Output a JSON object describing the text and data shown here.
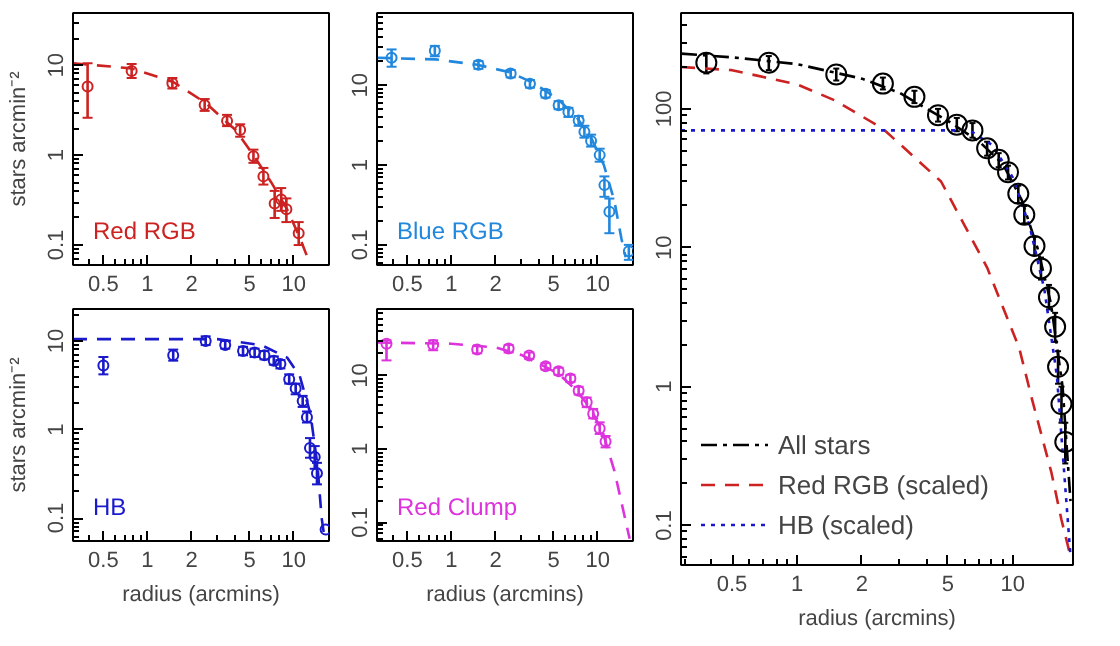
{
  "chart_data": [
    {
      "type": "scatter",
      "log": "xy",
      "ylabel": "stars arcmin⁻²",
      "xlim": [
        0.31,
        17.4
      ],
      "ylim": [
        0.06,
        38
      ],
      "xticks": [
        0.5,
        1,
        2,
        5,
        10
      ],
      "yticks": [
        0.1,
        1,
        10
      ],
      "series": [
        {
          "name": "Red RGB",
          "color": "#cc2222",
          "type": "scatter",
          "marker": "circle",
          "x": [
            0.39,
            0.78,
            1.48,
            2.46,
            3.5,
            4.3,
            5.3,
            6.2,
            7.4,
            8.2,
            8.9,
            10.8
          ],
          "values": [
            5.8,
            8.6,
            6.3,
            3.6,
            2.4,
            1.9,
            0.97,
            0.58,
            0.29,
            0.32,
            0.25,
            0.135
          ],
          "errors": [
            [
              2.6,
              10.5
            ],
            [
              7.2,
              10.3
            ],
            [
              5.5,
              7.2
            ],
            [
              3.1,
              4.2
            ],
            [
              2.1,
              2.8
            ],
            [
              1.6,
              2.2
            ],
            [
              0.82,
              1.15
            ],
            [
              0.47,
              0.72
            ],
            [
              0.2,
              0.4
            ],
            [
              0.24,
              0.43
            ],
            [
              0.18,
              0.33
            ],
            [
              0.1,
              0.18
            ]
          ]
        },
        {
          "color": "#cc2222",
          "type": "line",
          "line_style": "dashed",
          "x": [
            0.31,
            0.78,
            1.5,
            2.5,
            4,
            5.3,
            7,
            9,
            11,
            13
          ],
          "values": [
            10.5,
            9.2,
            6.5,
            3.8,
            1.9,
            1.0,
            0.5,
            0.25,
            0.12,
            0.06
          ]
        }
      ]
    },
    {
      "type": "scatter",
      "log": "xy",
      "xlim": [
        0.31,
        17.4
      ],
      "ylim": [
        0.056,
        80
      ],
      "xticks": [
        0.5,
        1,
        2,
        5,
        10
      ],
      "yticks": [
        0.1,
        1,
        10
      ],
      "series": [
        {
          "name": "Blue RGB",
          "color": "#2288dd",
          "type": "scatter",
          "marker": "circle",
          "x": [
            0.39,
            0.77,
            1.53,
            2.54,
            3.44,
            4.4,
            5.4,
            6.3,
            7.4,
            8.1,
            9.0,
            10.3,
            11.1,
            12.0,
            16.3
          ],
          "values": [
            22,
            27,
            18,
            14,
            10.4,
            7.8,
            5.6,
            4.6,
            3.6,
            2.6,
            2.0,
            1.33,
            0.56,
            0.26,
            0.083
          ],
          "errors": [
            [
              17,
              28
            ],
            [
              23,
              31
            ],
            [
              16,
              20
            ],
            [
              12.5,
              15.5
            ],
            [
              9.3,
              11.6
            ],
            [
              7,
              8.7
            ],
            [
              5,
              6.3
            ],
            [
              4,
              5.2
            ],
            [
              3.1,
              4.1
            ],
            [
              2.2,
              3.1
            ],
            [
              1.7,
              2.4
            ],
            [
              1.1,
              1.6
            ],
            [
              0.4,
              0.72
            ],
            [
              0.14,
              0.38
            ],
            [
              0.065,
              0.1
            ]
          ]
        },
        {
          "color": "#2288dd",
          "type": "line",
          "line_style": "dashed",
          "x": [
            0.31,
            0.78,
            1.5,
            2.5,
            3.5,
            4.4,
            5.4,
            7,
            9,
            11,
            13,
            14.5,
            15.5
          ],
          "values": [
            22,
            21,
            18,
            14.5,
            11,
            8.5,
            6.5,
            4.2,
            2.2,
            1.0,
            0.35,
            0.12,
            0.07
          ]
        }
      ]
    },
    {
      "type": "scatter",
      "log": "xy",
      "xlabel": "radius (arcmins)",
      "ylabel": "stars arcmin⁻²",
      "xlim": [
        0.31,
        17.4
      ],
      "ylim": [
        0.055,
        23
      ],
      "xticks": [
        0.5,
        1,
        2,
        5,
        10
      ],
      "yticks": [
        0.1,
        1,
        10
      ],
      "series": [
        {
          "name": "HB",
          "color": "#1a1acc",
          "type": "scatter",
          "marker": "circle",
          "x": [
            0.5,
            1.5,
            2.5,
            3.4,
            4.5,
            5.4,
            6.3,
            7.3,
            8.1,
            9.3,
            10.3,
            11.5,
            12.3,
            12.9,
            13.9,
            14.4,
            16.5
          ],
          "values": [
            5.3,
            6.9,
            10,
            9,
            7.7,
            7.4,
            6.9,
            6.0,
            5.5,
            3.7,
            2.9,
            2.1,
            1.38,
            0.62,
            0.49,
            0.32,
            0.074
          ],
          "errors": [
            [
              4.2,
              6.6
            ],
            [
              6,
              8
            ],
            [
              9,
              11.3
            ],
            [
              8.2,
              10
            ],
            [
              6.9,
              8.6
            ],
            [
              6.6,
              8.2
            ],
            [
              6.2,
              7.7
            ],
            [
              5.4,
              6.7
            ],
            [
              4.9,
              6.1
            ],
            [
              3.3,
              4.2
            ],
            [
              2.5,
              3.3
            ],
            [
              1.8,
              2.4
            ],
            [
              1.2,
              1.6
            ],
            [
              0.48,
              0.8
            ],
            [
              0.36,
              0.65
            ],
            [
              0.24,
              0.42
            ],
            null
          ]
        },
        {
          "color": "#1a1acc",
          "type": "line",
          "line_style": "dashed",
          "x": [
            0.31,
            3,
            6,
            9,
            11,
            13,
            14.5,
            15.5,
            16.2
          ],
          "values": [
            10.5,
            10.5,
            9,
            6.5,
            4,
            1.5,
            0.4,
            0.1,
            0.06
          ]
        }
      ]
    },
    {
      "type": "scatter",
      "log": "xy",
      "xlabel": "radius (arcmins)",
      "xlim": [
        0.31,
        17.4
      ],
      "ylim": [
        0.056,
        80
      ],
      "xticks": [
        0.5,
        1,
        2,
        5,
        10
      ],
      "yticks": [
        0.1,
        1,
        10
      ],
      "series": [
        {
          "name": "Red Clump",
          "color": "#dd33dd",
          "type": "scatter",
          "marker": "circle",
          "x": [
            0.36,
            0.75,
            1.5,
            2.46,
            3.4,
            4.4,
            5.4,
            6.5,
            7.4,
            8.4,
            9.3,
            10.3,
            11.3
          ],
          "values": [
            27,
            26,
            22.5,
            23.3,
            18.6,
            13.3,
            11.4,
            9.1,
            6.2,
            4.3,
            3.0,
            1.9,
            1.26
          ],
          "errors": [
            [
              16,
              30
            ],
            [
              22,
              30
            ],
            [
              20,
              25
            ],
            [
              20.5,
              26
            ],
            [
              16.8,
              20.5
            ],
            [
              12,
              14.7
            ],
            [
              10.2,
              12.7
            ],
            [
              8.1,
              10.2
            ],
            [
              5.5,
              7
            ],
            [
              3.7,
              5
            ],
            [
              2.6,
              3.5
            ],
            [
              1.6,
              2.3
            ],
            [
              1.05,
              1.5
            ]
          ]
        },
        {
          "color": "#dd33dd",
          "type": "line",
          "line_style": "dashed",
          "x": [
            0.31,
            1,
            2,
            3,
            4.4,
            5.4,
            7,
            9,
            11,
            13,
            15,
            16.5
          ],
          "values": [
            28,
            27,
            24,
            19,
            13,
            10.5,
            6.5,
            3.5,
            1.5,
            0.5,
            0.14,
            0.06
          ]
        }
      ]
    },
    {
      "type": "scatter",
      "log": "xy",
      "legend": "bottom left",
      "xlabel": "radius (arcmins)",
      "xlim": [
        0.29,
        19
      ],
      "ylim": [
        0.052,
        490
      ],
      "xticks": [
        0.5,
        1,
        2,
        5,
        10
      ],
      "yticks": [
        0.1,
        1,
        10,
        100
      ],
      "series": [
        {
          "name": "All stars",
          "color": "#000000",
          "type": "line",
          "line_style": "dashdot",
          "x": [
            0.29,
            0.5,
            1,
            2,
            3,
            4,
            5,
            7,
            9,
            11,
            13,
            15,
            17,
            18.5
          ],
          "values": [
            250,
            235,
            210,
            165,
            130,
            100,
            82,
            58,
            40,
            22,
            10,
            4,
            1,
            0.15
          ]
        },
        {
          "name": "Red RGB (scaled)",
          "color": "#cc2222",
          "type": "line",
          "line_style": "dashed",
          "x": [
            0.29,
            0.5,
            1,
            1.5,
            2.5,
            4.65,
            7.6,
            10.7,
            12.3,
            15.1,
            16.8,
            18.5
          ],
          "values": [
            200,
            190,
            150,
            115,
            72,
            30,
            7.2,
            1.9,
            0.8,
            0.24,
            0.11,
            0.06
          ]
        },
        {
          "name": "HB (scaled)",
          "color": "#1a1acc",
          "type": "line",
          "line_style": "dotted",
          "x": [
            0.29,
            5.5,
            6.5,
            8,
            10,
            12,
            14,
            16,
            18.5
          ],
          "values": [
            70,
            70,
            68,
            55,
            32,
            14,
            5,
            1.2,
            0.06
          ]
        },
        {
          "color": "#000000",
          "type": "scatter",
          "marker": "circle",
          "x": [
            0.38,
            0.74,
            1.52,
            2.5,
            3.5,
            4.5,
            5.5,
            6.5,
            7.6,
            8.6,
            9.5,
            10.6,
            11.3,
            12.6,
            13.5,
            14.7,
            15.7,
            16.2,
            16.8,
            17.5
          ],
          "values": [
            215,
            215,
            177,
            152,
            122,
            90,
            77,
            70,
            52,
            43,
            35,
            24.5,
            17.3,
            10.3,
            7.1,
            4.4,
            2.7,
            1.39,
            0.75,
            0.4
          ],
          "errors": [
            [
              180,
              250
            ],
            [
              190,
              240
            ],
            [
              160,
              195
            ],
            [
              138,
              168
            ],
            [
              110,
              135
            ],
            [
              81,
              100
            ],
            [
              69,
              86
            ],
            [
              62,
              79
            ],
            [
              46,
              58
            ],
            [
              38,
              48
            ],
            [
              31,
              39
            ],
            [
              21,
              28
            ],
            [
              15,
              20
            ],
            [
              8.8,
              12
            ],
            [
              5.9,
              8.5
            ],
            [
              3.6,
              5.4
            ],
            [
              2.1,
              3.4
            ],
            [
              1.05,
              1.8
            ],
            [
              0.55,
              1.0
            ],
            [
              0.28,
              0.55
            ]
          ]
        }
      ]
    }
  ]
}
